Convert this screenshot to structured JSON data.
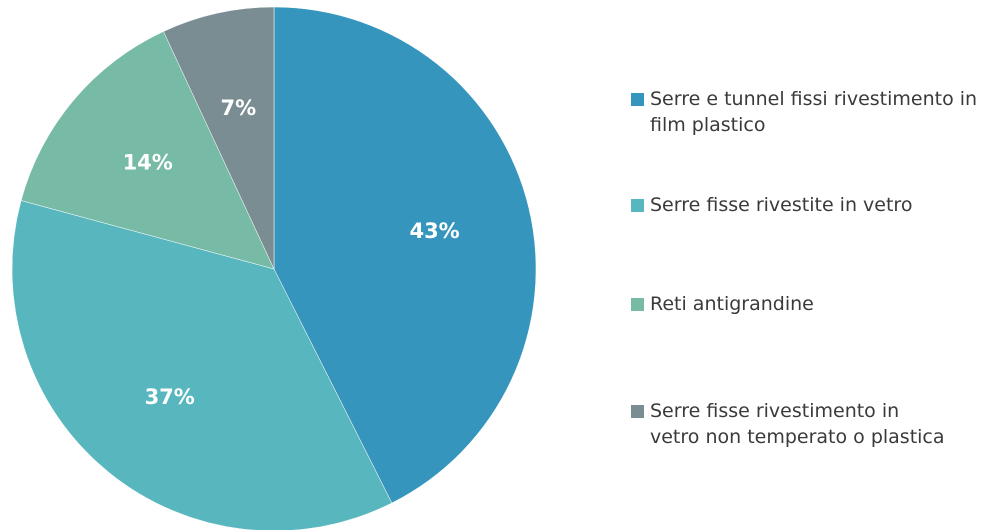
{
  "chart_data": {
    "type": "pie",
    "title": "",
    "legend": "right",
    "slices": [
      {
        "label": "Serre e tunnel fissi rivestimento in film plastico",
        "value": 43,
        "display": "43%",
        "color": "#3595bd"
      },
      {
        "label": "Serre fisse rivestite in vetro",
        "value": 37,
        "display": "37%",
        "color": "#58b6bf"
      },
      {
        "label": "Reti antigrandine",
        "value": 14,
        "display": "14%",
        "color": "#77bba6"
      },
      {
        "label": "Serre fisse rivestimento in vetro non temperato o plastica",
        "value": 7,
        "display": "7%",
        "color": "#7a8d92"
      }
    ]
  }
}
